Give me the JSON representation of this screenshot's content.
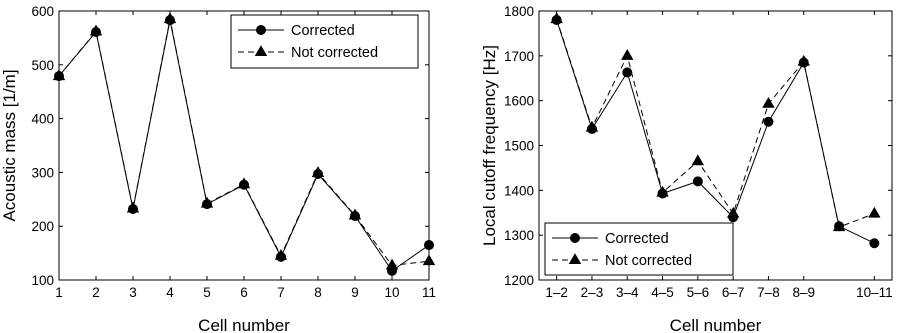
{
  "chart_data": [
    {
      "type": "line",
      "xlabel": "Cell number",
      "ylabel": "Acoustic mass [1/m]",
      "xlim": [
        1,
        11
      ],
      "ylim": [
        100,
        600
      ],
      "x_ticks": [
        "1",
        "2",
        "3",
        "4",
        "5",
        "6",
        "7",
        "8",
        "9",
        "10",
        "11"
      ],
      "y_ticks": [
        "100",
        "200",
        "300",
        "400",
        "500",
        "600"
      ],
      "legend_position": "top-right",
      "series": [
        {
          "name": "Corrected",
          "marker": "circle",
          "line": "solid",
          "x": [
            1,
            2,
            3,
            4,
            5,
            6,
            7,
            8,
            9,
            10,
            11
          ],
          "y": [
            479,
            561,
            232,
            583,
            241,
            277,
            143,
            297,
            219,
            117,
            165
          ]
        },
        {
          "name": "Not corrected",
          "marker": "triangle",
          "line": "dashed",
          "x": [
            1,
            2,
            3,
            4,
            5,
            6,
            7,
            8,
            9,
            10,
            11
          ],
          "y": [
            479,
            562,
            233,
            585,
            242,
            278,
            145,
            299,
            220,
            127,
            135
          ]
        }
      ]
    },
    {
      "type": "line",
      "xlabel": "Cell number",
      "ylabel": "Local cutoff frequency [Hz]",
      "xlim": [
        0.5,
        10.5
      ],
      "ylim": [
        1200,
        1800
      ],
      "x_ticks": [
        "1–2",
        "2–3",
        "3–4",
        "4–5",
        "5–6",
        "6–7",
        "7–8",
        "8–9",
        "10–11"
      ],
      "x_tick_positions": [
        1,
        2,
        3,
        4,
        5,
        6,
        7,
        8,
        10
      ],
      "y_ticks": [
        "1200",
        "1300",
        "1400",
        "1500",
        "1600",
        "1700",
        "1800"
      ],
      "legend_position": "bottom-left",
      "series": [
        {
          "name": "Corrected",
          "marker": "circle",
          "line": "solid",
          "x": [
            1,
            2,
            3,
            4,
            5,
            6,
            7,
            8,
            9,
            10
          ],
          "y": [
            1780,
            1537,
            1663,
            1393,
            1420,
            1340,
            1553,
            1685,
            1320,
            1282
          ]
        },
        {
          "name": "Not corrected",
          "marker": "triangle",
          "line": "dashed",
          "x": [
            1,
            2,
            3,
            4,
            5,
            6,
            7,
            8,
            9,
            10
          ],
          "y": [
            1782,
            1540,
            1700,
            1395,
            1465,
            1348,
            1593,
            1687,
            1318,
            1348
          ]
        }
      ]
    }
  ]
}
